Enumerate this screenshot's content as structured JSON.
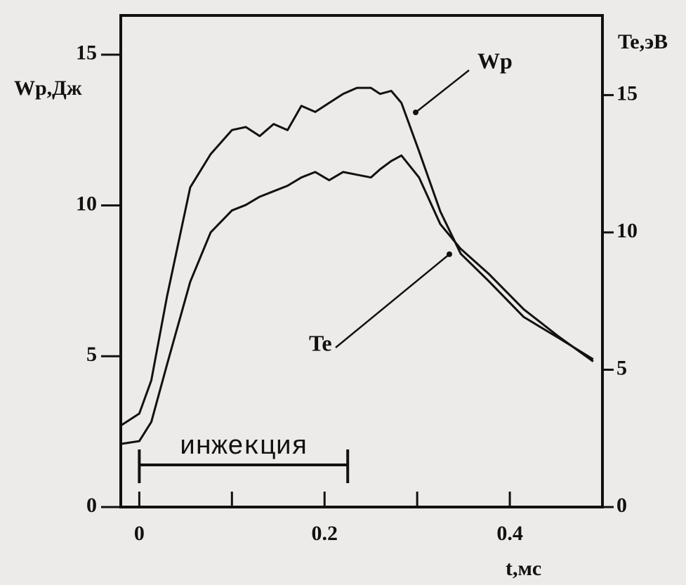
{
  "chart_data": {
    "type": "line",
    "x_label": "t,мс",
    "y_label": "Wp,Дж",
    "y2_label": "Te,эВ",
    "x": [
      -0.02,
      0,
      0.013,
      0.03,
      0.055,
      0.077,
      0.1,
      0.115,
      0.13,
      0.145,
      0.16,
      0.175,
      0.19,
      0.205,
      0.22,
      0.235,
      0.25,
      0.26,
      0.272,
      0.283,
      0.302,
      0.325,
      0.347,
      0.377,
      0.415,
      0.453,
      0.49
    ],
    "series": [
      {
        "name": "Wp",
        "color": "#111111",
        "values": [
          2.7,
          3.1,
          4.2,
          7.0,
          10.6,
          11.7,
          12.5,
          12.6,
          12.3,
          12.7,
          12.5,
          13.3,
          13.1,
          13.4,
          13.7,
          13.9,
          13.9,
          13.7,
          13.8,
          13.4,
          11.8,
          9.8,
          8.4,
          7.5,
          6.3,
          5.6,
          4.9
        ]
      },
      {
        "name": "Te",
        "color": "#111111",
        "axis": "y2",
        "values": [
          2.3,
          2.4,
          3.1,
          5.2,
          8.2,
          10.0,
          10.8,
          11.0,
          11.3,
          11.5,
          11.7,
          12.0,
          12.2,
          11.9,
          12.2,
          12.1,
          12.0,
          12.3,
          12.6,
          12.8,
          12.0,
          10.3,
          9.4,
          8.5,
          7.2,
          6.2,
          5.3
        ]
      }
    ],
    "xlim": [
      -0.02,
      0.5
    ],
    "xticks": [
      0,
      0.2,
      0.4
    ],
    "xminor_ticks": [
      0.1,
      0.3
    ],
    "ylim": [
      0,
      16.3
    ],
    "yticks": [
      0,
      5,
      10,
      15
    ],
    "y2lim": [
      0,
      17.9
    ],
    "y2ticks": [
      0,
      5,
      10,
      15
    ],
    "injection": {
      "label": "инжекция",
      "xrange": [
        0,
        0.225
      ]
    }
  }
}
